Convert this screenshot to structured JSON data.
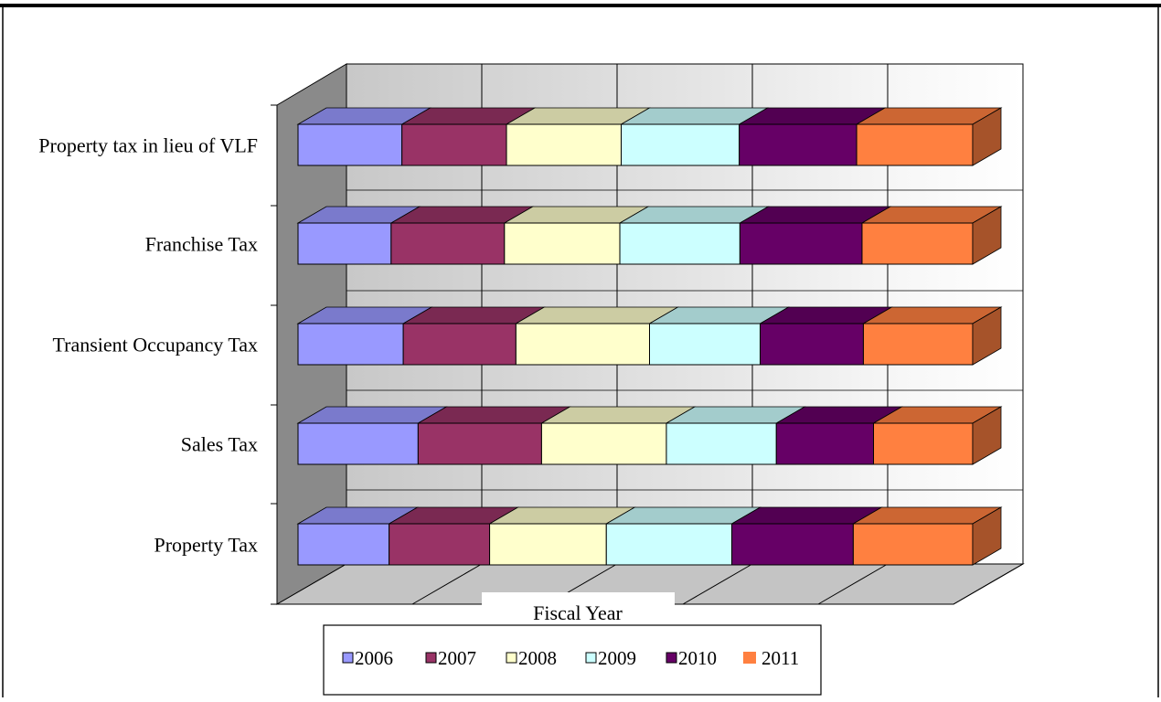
{
  "chart_data": {
    "type": "bar",
    "orientation": "horizontal",
    "stacking": "percent",
    "style": "3d",
    "categories": [
      "Property tax in lieu of VLF",
      "Franchise Tax",
      "Transient Occupancy Tax",
      "Sales Tax",
      "Property Tax"
    ],
    "series": [
      {
        "name": "2006",
        "values": [
          15.4,
          13.8,
          15.6,
          17.8,
          13.5
        ],
        "color": "#9999FF"
      },
      {
        "name": "2007",
        "values": [
          15.5,
          16.8,
          16.7,
          18.3,
          14.9
        ],
        "color": "#993366"
      },
      {
        "name": "2008",
        "values": [
          17.0,
          17.1,
          19.8,
          18.5,
          17.3
        ],
        "color": "#FFFFCC"
      },
      {
        "name": "2009",
        "values": [
          17.5,
          17.8,
          16.4,
          16.3,
          18.6
        ],
        "color": "#CCFFFF"
      },
      {
        "name": "2010",
        "values": [
          17.4,
          18.1,
          15.3,
          14.4,
          18.0
        ],
        "color": "#660066"
      },
      {
        "name": "2011",
        "values": [
          17.2,
          16.4,
          16.2,
          14.7,
          17.7
        ],
        "color": "#FF8040"
      }
    ],
    "xlabel": "Fiscal Year",
    "xlim": [
      0,
      100
    ],
    "grid": true,
    "legend": "bottom"
  }
}
